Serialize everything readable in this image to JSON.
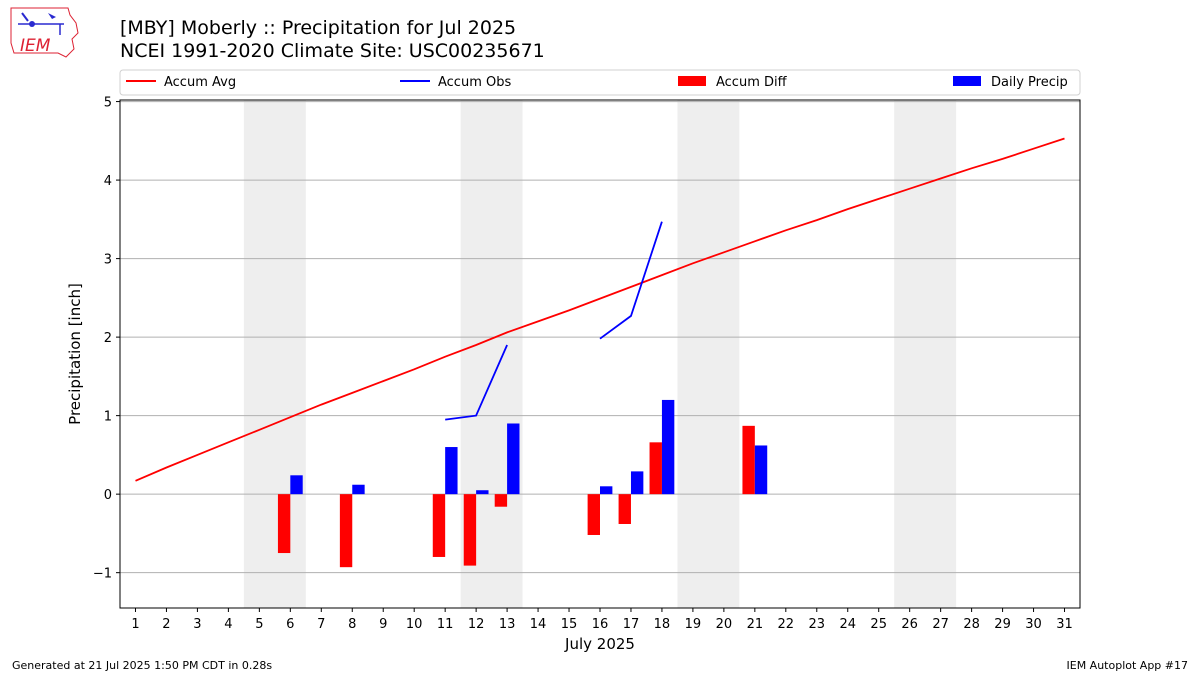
{
  "header": {
    "title_line1": "[MBY] Moberly :: Precipitation for Jul 2025",
    "title_line2": "NCEI 1991-2020 Climate Site: USC00235671",
    "logo_text": "IEM"
  },
  "footer": {
    "generated": "Generated at 21 Jul 2025 1:50 PM CDT in 0.28s",
    "app": "IEM Autoplot App #17"
  },
  "colors": {
    "accum_avg": "#ff0000",
    "accum_obs": "#0000ff",
    "accum_diff": "#ff0000",
    "daily_precip": "#0000ff",
    "weekend_shade": "#eeeeee",
    "grid": "#b0b0b0"
  },
  "chart_data": {
    "type": "bar",
    "xlabel": "July 2025",
    "ylabel": "Precipitation [inch]",
    "xlim": [
      0.5,
      31.5
    ],
    "ylim": [
      -1.45,
      5.02
    ],
    "yticks": [
      -1,
      0,
      1,
      2,
      3,
      4,
      5
    ],
    "grid": "horizontal",
    "legend_placement": "top",
    "days": [
      1,
      2,
      3,
      4,
      5,
      6,
      7,
      8,
      9,
      10,
      11,
      12,
      13,
      14,
      15,
      16,
      17,
      18,
      19,
      20,
      21,
      22,
      23,
      24,
      25,
      26,
      27,
      28,
      29,
      30,
      31
    ],
    "weekend_spans": [
      [
        5,
        6
      ],
      [
        12,
        13
      ],
      [
        19,
        20
      ],
      [
        26,
        27
      ]
    ],
    "legend": [
      "Accum Avg",
      "Accum Obs",
      "Accum Diff",
      "Daily Precip"
    ],
    "accum_avg": [
      {
        "day": 1,
        "value": 0.17
      },
      {
        "day": 2,
        "value": 0.34
      },
      {
        "day": 3,
        "value": 0.5
      },
      {
        "day": 4,
        "value": 0.66
      },
      {
        "day": 5,
        "value": 0.82
      },
      {
        "day": 6,
        "value": 0.98
      },
      {
        "day": 7,
        "value": 1.14
      },
      {
        "day": 8,
        "value": 1.29
      },
      {
        "day": 9,
        "value": 1.44
      },
      {
        "day": 10,
        "value": 1.59
      },
      {
        "day": 11,
        "value": 1.75
      },
      {
        "day": 12,
        "value": 1.9
      },
      {
        "day": 13,
        "value": 2.06
      },
      {
        "day": 14,
        "value": 2.2
      },
      {
        "day": 15,
        "value": 2.34
      },
      {
        "day": 16,
        "value": 2.49
      },
      {
        "day": 17,
        "value": 2.64
      },
      {
        "day": 18,
        "value": 2.79
      },
      {
        "day": 19,
        "value": 2.94
      },
      {
        "day": 20,
        "value": 3.08
      },
      {
        "day": 21,
        "value": 3.22
      },
      {
        "day": 22,
        "value": 3.36
      },
      {
        "day": 23,
        "value": 3.49
      },
      {
        "day": 24,
        "value": 3.63
      },
      {
        "day": 25,
        "value": 3.76
      },
      {
        "day": 26,
        "value": 3.89
      },
      {
        "day": 27,
        "value": 4.02
      },
      {
        "day": 28,
        "value": 4.15
      },
      {
        "day": 29,
        "value": 4.27
      },
      {
        "day": 30,
        "value": 4.4
      },
      {
        "day": 31,
        "value": 4.53
      }
    ],
    "accum_obs_segments": [
      [
        {
          "day": 11,
          "value": 0.95
        },
        {
          "day": 12,
          "value": 1.0
        },
        {
          "day": 13,
          "value": 1.9
        }
      ],
      [
        {
          "day": 16,
          "value": 1.98
        },
        {
          "day": 17,
          "value": 2.27
        },
        {
          "day": 18,
          "value": 3.47
        }
      ]
    ],
    "accum_diff": [
      {
        "day": 6,
        "value": -0.75
      },
      {
        "day": 8,
        "value": -0.93
      },
      {
        "day": 11,
        "value": -0.8
      },
      {
        "day": 12,
        "value": -0.91
      },
      {
        "day": 13,
        "value": -0.16
      },
      {
        "day": 16,
        "value": -0.52
      },
      {
        "day": 17,
        "value": -0.38
      },
      {
        "day": 18,
        "value": 0.66
      },
      {
        "day": 21,
        "value": 0.87
      }
    ],
    "daily_precip": [
      {
        "day": 6,
        "value": 0.24
      },
      {
        "day": 8,
        "value": 0.12
      },
      {
        "day": 11,
        "value": 0.6
      },
      {
        "day": 12,
        "value": 0.05
      },
      {
        "day": 13,
        "value": 0.9
      },
      {
        "day": 16,
        "value": 0.1
      },
      {
        "day": 17,
        "value": 0.29
      },
      {
        "day": 18,
        "value": 1.2
      },
      {
        "day": 21,
        "value": 0.62
      }
    ]
  }
}
